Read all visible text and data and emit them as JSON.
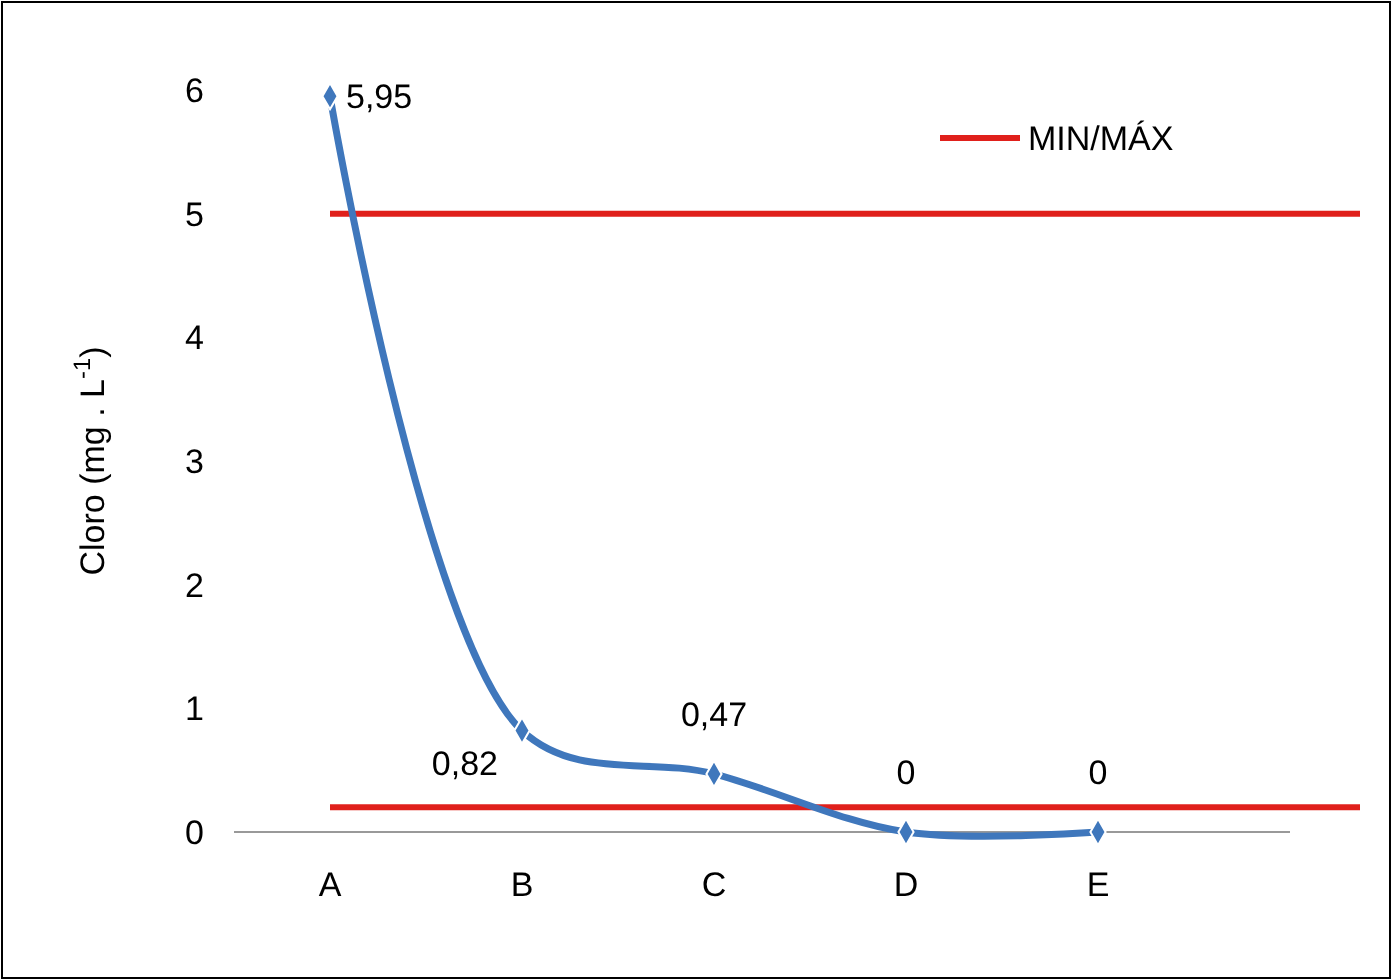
{
  "chart_data": {
    "type": "line",
    "ylabel": "Cloro  (mg . L$^{-1}$)",
    "categories": [
      "A",
      "B",
      "C",
      "D",
      "E"
    ],
    "series": [
      {
        "color": "#3f77bc",
        "values": [
          5.95,
          0.82,
          0.47,
          0,
          0
        ],
        "value_labels": [
          "5,95",
          "0,82",
          "0,47",
          "0",
          "0"
        ]
      }
    ],
    "ylim": [
      0,
      6
    ],
    "yticks": [
      0,
      1,
      2,
      3,
      4,
      5,
      6
    ],
    "grid": false,
    "marker": "diamond",
    "legend": "top right",
    "ref_lines": [
      {
        "axis": "y",
        "value": 5,
        "label": "MIN/MÁX",
        "color": "#e0201b"
      },
      {
        "axis": "y",
        "value": 0.2,
        "color": "#e0201b"
      }
    ]
  }
}
